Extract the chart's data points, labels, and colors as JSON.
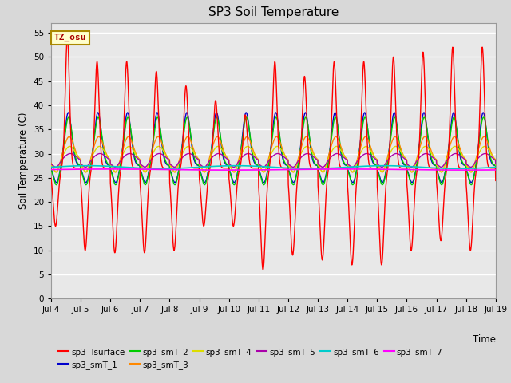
{
  "title": "SP3 Soil Temperature",
  "ylabel": "Soil Temperature (C)",
  "xlabel": "Time",
  "annotation": "TZ_osu",
  "ylim": [
    0,
    57
  ],
  "yticks": [
    0,
    5,
    10,
    15,
    20,
    25,
    30,
    35,
    40,
    45,
    50,
    55
  ],
  "date_start": 4,
  "date_end": 19,
  "n_days": 15,
  "pts_per_day": 144,
  "series_colors": {
    "sp3_Tsurface": "#FF0000",
    "sp3_smT_1": "#0000CC",
    "sp3_smT_2": "#00CC00",
    "sp3_smT_3": "#FF8800",
    "sp3_smT_4": "#DDDD00",
    "sp3_smT_5": "#AA00AA",
    "sp3_smT_6": "#00CCCC",
    "sp3_smT_7": "#FF00FF"
  },
  "bg_color": "#D8D8D8",
  "plot_bg_color": "#E8E8E8",
  "grid_color": "#FFFFFF",
  "annotation_bg": "#FFFFCC",
  "annotation_border": "#AA8800"
}
